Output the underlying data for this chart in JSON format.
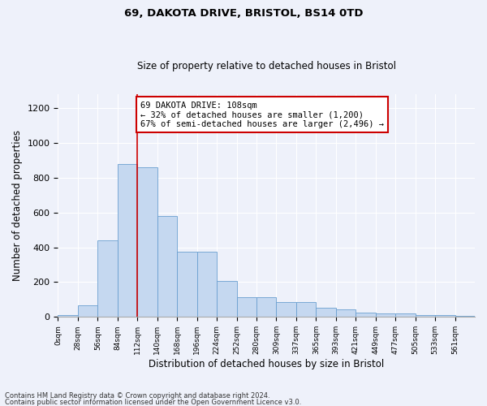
{
  "title1": "69, DAKOTA DRIVE, BRISTOL, BS14 0TD",
  "title2": "Size of property relative to detached houses in Bristol",
  "xlabel": "Distribution of detached houses by size in Bristol",
  "ylabel": "Number of detached properties",
  "bar_values": [
    10,
    65,
    440,
    880,
    860,
    580,
    375,
    375,
    205,
    115,
    115,
    85,
    85,
    52,
    42,
    25,
    20,
    18,
    12,
    10,
    8
  ],
  "tick_labels": [
    "0sqm",
    "28sqm",
    "56sqm",
    "84sqm",
    "112sqm",
    "140sqm",
    "168sqm",
    "196sqm",
    "224sqm",
    "252sqm",
    "280sqm",
    "309sqm",
    "337sqm",
    "365sqm",
    "393sqm",
    "421sqm",
    "449sqm",
    "477sqm",
    "505sqm",
    "533sqm",
    "561sqm"
  ],
  "bar_color": "#c5d8f0",
  "bar_edge_color": "#6a9fd0",
  "vline_x": 4,
  "vline_color": "#cc0000",
  "annotation_text": "69 DAKOTA DRIVE: 108sqm\n← 32% of detached houses are smaller (1,200)\n67% of semi-detached houses are larger (2,496) →",
  "annotation_box_color": "#ffffff",
  "annotation_box_edge": "#cc0000",
  "ylim": [
    0,
    1280
  ],
  "yticks": [
    0,
    200,
    400,
    600,
    800,
    1000,
    1200
  ],
  "footer1": "Contains HM Land Registry data © Crown copyright and database right 2024.",
  "footer2": "Contains public sector information licensed under the Open Government Licence v3.0.",
  "background_color": "#eef1fa",
  "plot_bg_color": "#eef1fa",
  "grid_color": "#ffffff",
  "title1_fontsize": 9.5,
  "title2_fontsize": 8.5
}
